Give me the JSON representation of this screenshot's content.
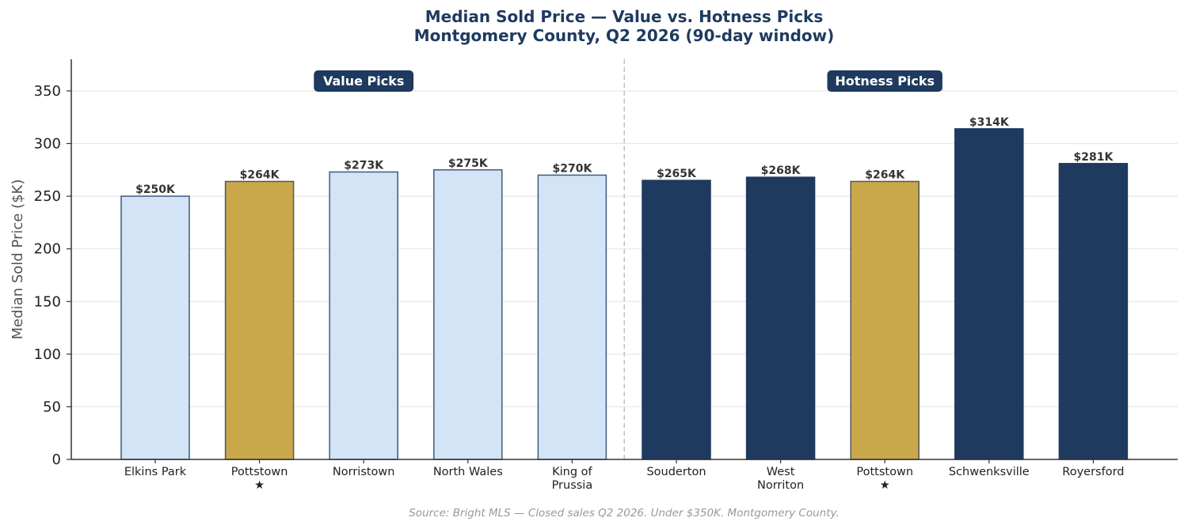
{
  "chart_data": {
    "type": "bar",
    "title_line1": "Median Sold Price — Value vs. Hotness Picks",
    "title_line2": "Montgomery County, Q2 2026 (90-day window)",
    "ylabel": "Median Sold Price ($K)",
    "xlabel": "",
    "ylim": [
      0,
      380
    ],
    "yticks": [
      0,
      50,
      100,
      150,
      200,
      250,
      300,
      350
    ],
    "grid": "horizontal",
    "groups": [
      {
        "name": "Value Picks",
        "start": 0,
        "end": 4
      },
      {
        "name": "Hotness Picks",
        "start": 5,
        "end": 9
      }
    ],
    "categories": [
      [
        "Elkins Park"
      ],
      [
        "Pottstown",
        "★"
      ],
      [
        "Norristown"
      ],
      [
        "North Wales"
      ],
      [
        "King of",
        "Prussia"
      ],
      [
        "Souderton"
      ],
      [
        "West",
        "Norriton"
      ],
      [
        "Pottstown",
        "★"
      ],
      [
        "Schwenksville"
      ],
      [
        "Royersford"
      ]
    ],
    "values": [
      250,
      264,
      273,
      275,
      270,
      265,
      268,
      264,
      314,
      281
    ],
    "value_labels": [
      "$250K",
      "$264K",
      "$273K",
      "$275K",
      "$270K",
      "$265K",
      "$268K",
      "$264K",
      "$314K",
      "$281K"
    ],
    "bar_kinds": [
      "value",
      "highlight",
      "value",
      "value",
      "value",
      "hot",
      "hot",
      "highlight",
      "hot",
      "hot"
    ],
    "colors": {
      "value": "#d2e4f5",
      "value_edge": "#3d5a80",
      "hot": "#1e3a5f",
      "highlight": "#c9a84c",
      "highlight_edge": "#555555",
      "title": "#1e3a5f",
      "badge": "#1e3a5f",
      "grid": "#e6e6e6",
      "divider": "#bbbbbb"
    },
    "source": "Source: Bright MLS — Closed sales Q2 2026. Under $350K. Montgomery County."
  }
}
